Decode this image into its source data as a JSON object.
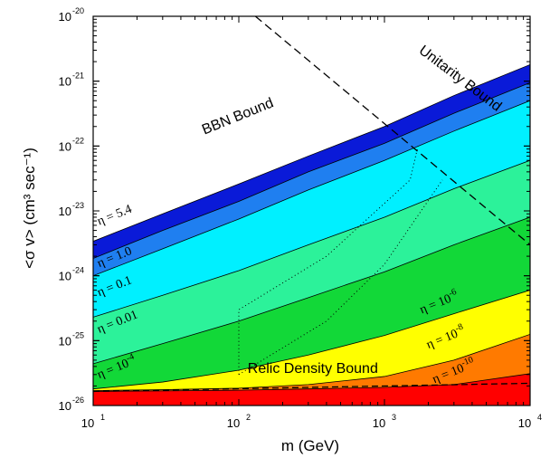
{
  "chart_data": {
    "type": "area",
    "title": "",
    "xlabel": "m (GeV)",
    "ylabel": "<σ v> (cm³ sec⁻¹)",
    "xscale": "log",
    "yscale": "log",
    "xlim": [
      10,
      10000
    ],
    "ylim": [
      1e-26,
      1e-20
    ],
    "x_ticks": [
      {
        "value": 10,
        "base": "10",
        "exp": "1"
      },
      {
        "value": 100,
        "base": "10",
        "exp": "2"
      },
      {
        "value": 1000,
        "base": "10",
        "exp": "3"
      },
      {
        "value": 10000,
        "base": "10",
        "exp": "4"
      }
    ],
    "y_ticks": [
      {
        "value": 1e-26,
        "base": "10",
        "exp": "-26"
      },
      {
        "value": 1e-25,
        "base": "10",
        "exp": "-25"
      },
      {
        "value": 1e-24,
        "base": "10",
        "exp": "-24"
      },
      {
        "value": 1e-23,
        "base": "10",
        "exp": "-23"
      },
      {
        "value": 1e-22,
        "base": "10",
        "exp": "-22"
      },
      {
        "value": 1e-21,
        "base": "10",
        "exp": "-21"
      },
      {
        "value": 1e-20,
        "base": "10",
        "exp": "-20"
      }
    ],
    "x": [
      10,
      30,
      100,
      300,
      1000,
      3000,
      10000
    ],
    "series": [
      {
        "name": "η = 5.4",
        "color": "#0a1ad8",
        "values": [
          3.4e-24,
          9e-24,
          2.6e-23,
          7e-23,
          2e-22,
          6e-22,
          1.8e-21
        ]
      },
      {
        "name": "η = 1.0",
        "color": "#1f7ff0",
        "values": [
          1.85e-24,
          5e-24,
          1.4e-23,
          4e-23,
          1.1e-22,
          3.2e-22,
          9.5e-22
        ]
      },
      {
        "name": "η = 0.1",
        "color": "#00f0ff",
        "values": [
          1e-24,
          2.6e-24,
          7.5e-24,
          2.1e-23,
          6e-23,
          1.7e-22,
          5e-22
        ]
      },
      {
        "name": "η = 0.01",
        "color": "#2cf29a",
        "values": [
          2.3e-25,
          5e-25,
          1.2e-24,
          3e-24,
          8e-24,
          2.2e-23,
          6e-23
        ]
      },
      {
        "name": "η = 10⁻⁴",
        "color": "#12d838",
        "values": [
          4.4e-26,
          9e-26,
          2e-25,
          4.6e-25,
          1.15e-24,
          3e-24,
          8e-24
        ]
      },
      {
        "name": "η = 10⁻⁶",
        "color": "#ffff00",
        "values": [
          1.8e-26,
          2.3e-26,
          3.5e-26,
          6e-26,
          1.2e-25,
          2.6e-25,
          6e-25
        ]
      },
      {
        "name": "η = 10⁻⁸",
        "color": "#ff7a00",
        "values": [
          1.7e-26,
          1.75e-26,
          1.85e-26,
          2.1e-26,
          2.8e-26,
          5e-26,
          1.25e-25
        ]
      },
      {
        "name": "η = 10⁻¹⁰",
        "color": "#ff0000",
        "values": [
          1.65e-26,
          1.68e-26,
          1.72e-26,
          1.8e-26,
          1.9e-26,
          2.1e-26,
          3.1e-26
        ]
      }
    ],
    "lower_bound": {
      "x": [
        10,
        10000
      ],
      "values": [
        1.65e-26,
        2.2e-26
      ]
    },
    "unitarity_bound": {
      "x": [
        130,
        10000
      ],
      "values": [
        1e-20,
        3e-24
      ]
    },
    "dotted_curves": [
      {
        "x": [
          100,
          100,
          400,
          1500,
          1700
        ],
        "values": [
          3e-26,
          3e-25,
          2e-24,
          3e-23,
          1e-22
        ]
      },
      {
        "x": [
          100,
          400,
          1000,
          2500
        ],
        "values": [
          3e-26,
          2e-25,
          1.5e-24,
          3e-23
        ]
      }
    ],
    "labels": [
      {
        "text": "BBN Bound",
        "x": 58,
        "y": 1.5e-22
      },
      {
        "text": "Unitarity Bound",
        "x": 1700,
        "y": 2.8e-21
      },
      {
        "text": "Relic Density Bound",
        "x": 115,
        "y": 3.2e-26
      }
    ],
    "eta_labels": [
      {
        "base": "η = 5.4",
        "exp": "",
        "x": 11,
        "y": 6e-24
      },
      {
        "base": "η = 1.0",
        "exp": "",
        "x": 11,
        "y": 1.35e-24
      },
      {
        "base": "η = 0.1",
        "exp": "",
        "x": 11,
        "y": 4.8e-25
      },
      {
        "base": "η = 0.01",
        "exp": "",
        "x": 11,
        "y": 1.3e-25
      },
      {
        "base": "η = 10",
        "exp": "-4",
        "x": 11,
        "y": 2.6e-26
      },
      {
        "base": "η = 10",
        "exp": "-6",
        "x": 1800,
        "y": 2.6e-25
      },
      {
        "base": "η = 10",
        "exp": "-8",
        "x": 2000,
        "y": 7.5e-26
      },
      {
        "base": "η = 10",
        "exp": "-10",
        "x": 2200,
        "y": 2.2e-26
      }
    ]
  }
}
